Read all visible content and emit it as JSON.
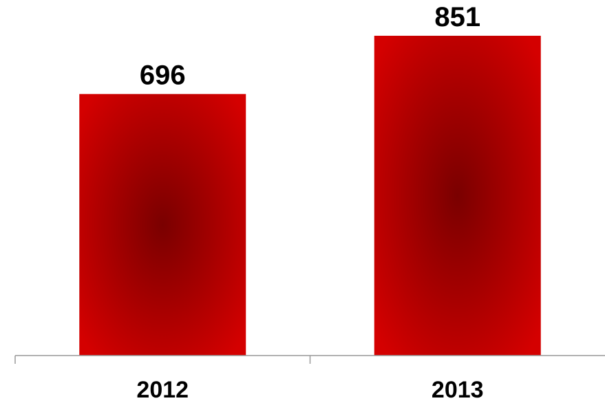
{
  "chart_data": {
    "type": "bar",
    "categories": [
      "2012",
      "2013"
    ],
    "values": [
      696,
      851
    ],
    "ylim": [
      0,
      851
    ],
    "grid": false,
    "legend": "none",
    "bar_color_edge": "#d40000",
    "bar_color_center": "#7a0000",
    "axis_color": "#999999"
  }
}
